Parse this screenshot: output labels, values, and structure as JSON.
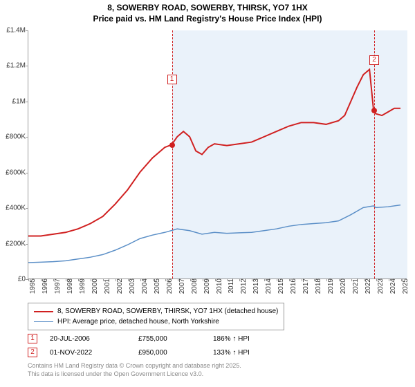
{
  "title": {
    "line1": "8, SOWERBY ROAD, SOWERBY, THIRSK, YO7 1HX",
    "line2": "Price paid vs. HM Land Registry's House Price Index (HPI)"
  },
  "chart": {
    "type": "line",
    "background_color": "#ffffff",
    "shaded_color": "#eaf2fa",
    "x_range": [
      1995,
      2025.5
    ],
    "y_range": [
      0,
      1400000
    ],
    "y_ticks": [
      {
        "v": 0,
        "label": "£0"
      },
      {
        "v": 200000,
        "label": "£200K"
      },
      {
        "v": 400000,
        "label": "£400K"
      },
      {
        "v": 600000,
        "label": "£600K"
      },
      {
        "v": 800000,
        "label": "£800K"
      },
      {
        "v": 1000000,
        "label": "£1M"
      },
      {
        "v": 1200000,
        "label": "£1.2M"
      },
      {
        "v": 1400000,
        "label": "£1.4M"
      }
    ],
    "x_ticks": [
      1995,
      1996,
      1997,
      1998,
      1999,
      2000,
      2001,
      2002,
      2003,
      2004,
      2005,
      2006,
      2007,
      2008,
      2009,
      2010,
      2011,
      2012,
      2013,
      2014,
      2015,
      2016,
      2017,
      2018,
      2019,
      2020,
      2021,
      2022,
      2023,
      2024,
      2025
    ],
    "shaded_from": 2006.55,
    "series": [
      {
        "name": "property",
        "label": "8, SOWERBY ROAD, SOWERBY, THIRSK, YO7 1HX (detached house)",
        "color": "#d02020",
        "width": 2,
        "points": [
          [
            1995,
            240000
          ],
          [
            1996,
            240000
          ],
          [
            1997,
            250000
          ],
          [
            1998,
            260000
          ],
          [
            1999,
            280000
          ],
          [
            2000,
            310000
          ],
          [
            2001,
            350000
          ],
          [
            2002,
            420000
          ],
          [
            2003,
            500000
          ],
          [
            2004,
            600000
          ],
          [
            2005,
            680000
          ],
          [
            2006,
            740000
          ],
          [
            2006.55,
            755000
          ],
          [
            2007,
            800000
          ],
          [
            2007.5,
            830000
          ],
          [
            2008,
            800000
          ],
          [
            2008.5,
            720000
          ],
          [
            2009,
            700000
          ],
          [
            2009.5,
            740000
          ],
          [
            2010,
            760000
          ],
          [
            2011,
            750000
          ],
          [
            2012,
            760000
          ],
          [
            2013,
            770000
          ],
          [
            2014,
            800000
          ],
          [
            2015,
            830000
          ],
          [
            2016,
            860000
          ],
          [
            2017,
            880000
          ],
          [
            2018,
            880000
          ],
          [
            2019,
            870000
          ],
          [
            2020,
            890000
          ],
          [
            2020.5,
            920000
          ],
          [
            2021,
            1000000
          ],
          [
            2021.5,
            1080000
          ],
          [
            2022,
            1150000
          ],
          [
            2022.5,
            1180000
          ],
          [
            2022.83,
            950000
          ],
          [
            2023,
            930000
          ],
          [
            2023.5,
            920000
          ],
          [
            2024,
            940000
          ],
          [
            2024.5,
            960000
          ],
          [
            2025,
            960000
          ]
        ]
      },
      {
        "name": "hpi",
        "label": "HPI: Average price, detached house, North Yorkshire",
        "color": "#5b8fc7",
        "width": 1.5,
        "points": [
          [
            1995,
            90000
          ],
          [
            1996,
            92000
          ],
          [
            1997,
            95000
          ],
          [
            1998,
            100000
          ],
          [
            1999,
            110000
          ],
          [
            2000,
            120000
          ],
          [
            2001,
            135000
          ],
          [
            2002,
            160000
          ],
          [
            2003,
            190000
          ],
          [
            2004,
            225000
          ],
          [
            2005,
            245000
          ],
          [
            2006,
            260000
          ],
          [
            2007,
            280000
          ],
          [
            2008,
            270000
          ],
          [
            2009,
            250000
          ],
          [
            2010,
            260000
          ],
          [
            2011,
            255000
          ],
          [
            2012,
            258000
          ],
          [
            2013,
            260000
          ],
          [
            2014,
            270000
          ],
          [
            2015,
            280000
          ],
          [
            2016,
            295000
          ],
          [
            2017,
            305000
          ],
          [
            2018,
            310000
          ],
          [
            2019,
            315000
          ],
          [
            2020,
            325000
          ],
          [
            2021,
            360000
          ],
          [
            2022,
            400000
          ],
          [
            2022.83,
            410000
          ],
          [
            2023,
            400000
          ],
          [
            2024,
            405000
          ],
          [
            2025,
            415000
          ]
        ]
      }
    ],
    "markers": [
      {
        "n": "1",
        "x": 2006.55,
        "y": 755000,
        "color": "#d02020"
      },
      {
        "n": "2",
        "x": 2022.83,
        "y": 950000,
        "color": "#d02020"
      }
    ]
  },
  "legend": {
    "items": [
      {
        "color": "#d02020",
        "width": 2,
        "label": "8, SOWERBY ROAD, SOWERBY, THIRSK, YO7 1HX (detached house)"
      },
      {
        "color": "#5b8fc7",
        "width": 1.5,
        "label": "HPI: Average price, detached house, North Yorkshire"
      }
    ]
  },
  "sales": [
    {
      "n": "1",
      "date": "20-JUL-2006",
      "price": "£755,000",
      "hpi": "186% ↑ HPI"
    },
    {
      "n": "2",
      "date": "01-NOV-2022",
      "price": "£950,000",
      "hpi": "133% ↑ HPI"
    }
  ],
  "attribution": {
    "line1": "Contains HM Land Registry data © Crown copyright and database right 2025.",
    "line2": "This data is licensed under the Open Government Licence v3.0."
  }
}
